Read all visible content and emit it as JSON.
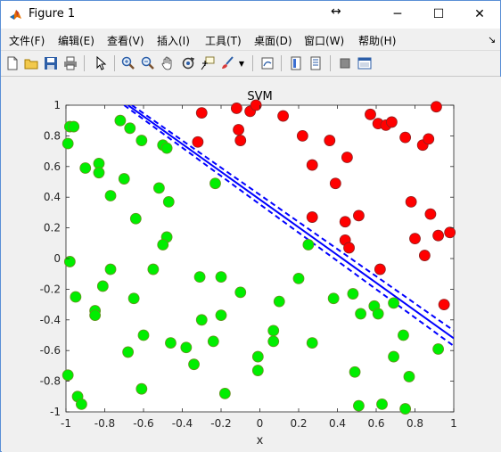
{
  "window": {
    "title": "Figure 1",
    "icons": [
      "matlab-logo-icon",
      "pin-arrows-icon",
      "minimize-icon",
      "maximize-icon",
      "close-icon"
    ]
  },
  "menu": [
    {
      "label": "文件(F)"
    },
    {
      "label": "编辑(E)"
    },
    {
      "label": "查看(V)"
    },
    {
      "label": "插入(I)"
    },
    {
      "label": "工具(T)"
    },
    {
      "label": "桌面(D)"
    },
    {
      "label": "窗口(W)"
    },
    {
      "label": "帮助(H)"
    }
  ],
  "toolbar": {
    "icons": [
      "new-figure-icon",
      "open-file-icon",
      "save-icon",
      "print-icon",
      "pointer-icon",
      "zoom-in-icon",
      "zoom-out-icon",
      "pan-icon",
      "rotate-3d-icon",
      "data-cursor-icon",
      "brush-icon",
      "brush-dropdown-icon",
      "link-plot-icon",
      "insert-colorbar-icon",
      "insert-legend-icon",
      "hide-plot-tools-icon",
      "show-plot-tools-icon"
    ]
  },
  "chart_data": {
    "type": "scatter",
    "title": "SVM",
    "xlabel": "x",
    "ylabel": "",
    "xlim": [
      -1,
      1
    ],
    "ylim": [
      -1,
      1
    ],
    "xticks": [
      -1,
      -0.8,
      -0.6,
      -0.4,
      -0.2,
      0,
      0.2,
      0.4,
      0.6,
      0.8,
      1
    ],
    "yticks": [
      -1,
      -0.8,
      -0.6,
      -0.4,
      -0.2,
      0,
      0.2,
      0.4,
      0.6,
      0.8,
      1
    ],
    "xtick_labels": [
      "-1",
      "-0.8",
      "-0.6",
      "-0.4",
      "-0.2",
      "0",
      "0.2",
      "0.4",
      "0.6",
      "0.8",
      "1"
    ],
    "ytick_labels": [
      "-1",
      "-0.8",
      "-0.6",
      "-0.4",
      "-0.2",
      "0",
      "0.2",
      "0.4",
      "0.6",
      "0.8",
      "1"
    ],
    "grid": false,
    "series": [
      {
        "color": "#ff0000",
        "edge": "#8b2020",
        "points": [
          [
            -0.3,
            0.95
          ],
          [
            -0.12,
            0.98
          ],
          [
            -0.05,
            0.96
          ],
          [
            -0.02,
            1.0
          ],
          [
            0.12,
            0.93
          ],
          [
            -0.32,
            0.76
          ],
          [
            -0.11,
            0.84
          ],
          [
            -0.1,
            0.77
          ],
          [
            0.22,
            0.8
          ],
          [
            0.36,
            0.77
          ],
          [
            0.45,
            0.66
          ],
          [
            0.27,
            0.61
          ],
          [
            0.39,
            0.49
          ],
          [
            0.57,
            0.94
          ],
          [
            0.61,
            0.88
          ],
          [
            0.65,
            0.87
          ],
          [
            0.68,
            0.89
          ],
          [
            0.75,
            0.79
          ],
          [
            0.84,
            0.74
          ],
          [
            0.87,
            0.78
          ],
          [
            0.91,
            0.99
          ],
          [
            0.78,
            0.37
          ],
          [
            0.88,
            0.29
          ],
          [
            0.27,
            0.27
          ],
          [
            0.44,
            0.24
          ],
          [
            0.51,
            0.28
          ],
          [
            0.8,
            0.13
          ],
          [
            0.92,
            0.15
          ],
          [
            0.98,
            0.17
          ],
          [
            0.44,
            0.12
          ],
          [
            0.46,
            0.07
          ],
          [
            0.85,
            0.02
          ],
          [
            0.62,
            -0.07
          ],
          [
            0.95,
            -0.3
          ]
        ]
      },
      {
        "color": "#00ee00",
        "edge": "#6b8e23",
        "points": [
          [
            -0.98,
            0.86
          ],
          [
            -0.96,
            0.86
          ],
          [
            -0.99,
            0.75
          ],
          [
            -0.72,
            0.9
          ],
          [
            -0.67,
            0.85
          ],
          [
            -0.61,
            0.77
          ],
          [
            -0.5,
            0.74
          ],
          [
            -0.48,
            0.72
          ],
          [
            -0.9,
            0.59
          ],
          [
            -0.83,
            0.62
          ],
          [
            -0.83,
            0.56
          ],
          [
            -0.7,
            0.52
          ],
          [
            -0.52,
            0.46
          ],
          [
            -0.77,
            0.41
          ],
          [
            -0.47,
            0.37
          ],
          [
            -0.23,
            0.49
          ],
          [
            -0.64,
            0.26
          ],
          [
            -0.48,
            0.14
          ],
          [
            -0.5,
            0.09
          ],
          [
            -0.98,
            -0.02
          ],
          [
            -0.77,
            -0.07
          ],
          [
            -0.55,
            -0.07
          ],
          [
            -0.31,
            -0.12
          ],
          [
            -0.2,
            -0.12
          ],
          [
            -0.81,
            -0.18
          ],
          [
            -0.95,
            -0.25
          ],
          [
            -0.65,
            -0.26
          ],
          [
            -0.1,
            -0.22
          ],
          [
            -0.85,
            -0.34
          ],
          [
            -0.85,
            -0.37
          ],
          [
            -0.2,
            -0.37
          ],
          [
            -0.3,
            -0.4
          ],
          [
            0.1,
            -0.28
          ],
          [
            -0.6,
            -0.5
          ],
          [
            -0.46,
            -0.55
          ],
          [
            -0.38,
            -0.58
          ],
          [
            -0.24,
            -0.54
          ],
          [
            0.07,
            -0.47
          ],
          [
            0.07,
            -0.54
          ],
          [
            0.27,
            -0.55
          ],
          [
            -0.68,
            -0.61
          ],
          [
            -0.34,
            -0.69
          ],
          [
            -0.01,
            -0.64
          ],
          [
            -0.01,
            -0.73
          ],
          [
            0.2,
            -0.13
          ],
          [
            0.38,
            -0.26
          ],
          [
            0.48,
            -0.23
          ],
          [
            0.52,
            -0.36
          ],
          [
            0.59,
            -0.31
          ],
          [
            0.61,
            -0.36
          ],
          [
            0.69,
            -0.29
          ],
          [
            0.74,
            -0.5
          ],
          [
            0.92,
            -0.59
          ],
          [
            0.69,
            -0.64
          ],
          [
            0.49,
            -0.74
          ],
          [
            0.77,
            -0.77
          ],
          [
            -0.99,
            -0.76
          ],
          [
            -0.61,
            -0.85
          ],
          [
            -0.94,
            -0.9
          ],
          [
            -0.92,
            -0.95
          ],
          [
            -0.18,
            -0.88
          ],
          [
            0.51,
            -0.96
          ],
          [
            0.63,
            -0.95
          ],
          [
            0.75,
            -0.98
          ],
          [
            0.25,
            0.09
          ]
        ]
      }
    ],
    "lines": [
      {
        "style": "solid",
        "color": "#0000ff",
        "from": [
          -0.68,
          1.0
        ],
        "to": [
          1.0,
          -0.52
        ]
      },
      {
        "style": "dashed",
        "color": "#0000ff",
        "from": [
          -0.66,
          1.0
        ],
        "to": [
          1.0,
          -0.47
        ]
      },
      {
        "style": "dashed",
        "color": "#0000ff",
        "from": [
          -0.7,
          1.0
        ],
        "to": [
          1.0,
          -0.57
        ]
      }
    ]
  }
}
